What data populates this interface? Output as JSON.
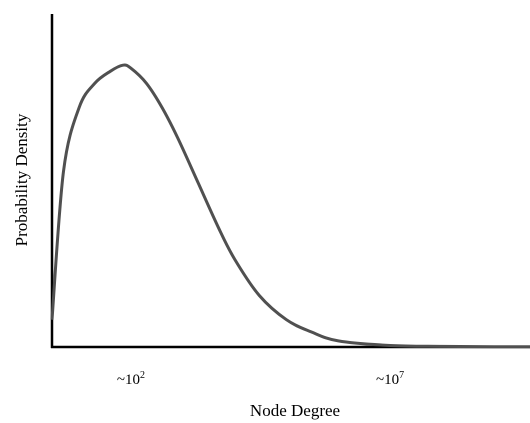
{
  "chart_data": {
    "type": "line",
    "title": "",
    "xlabel": "Node Degree",
    "ylabel": "Probability Density",
    "x_scale": "log",
    "xlim": [
      3,
      5000000000
    ],
    "ylim": [
      0,
      1
    ],
    "grid": false,
    "legend": "none",
    "tick_labels": {
      "x": [
        {
          "value": 100,
          "base": "~10",
          "exp": "2"
        },
        {
          "value": 10000000,
          "base": "~10",
          "exp": "7"
        }
      ],
      "y": []
    },
    "series": [
      {
        "color": "#505050",
        "x": [
          3,
          5,
          10,
          20,
          40,
          70,
          100,
          200,
          400,
          800,
          2000,
          5000,
          10000,
          30000,
          100000,
          300000,
          1000000,
          10000000,
          100000000,
          1000000000,
          5000000000
        ],
        "y": [
          0.09,
          0.58,
          0.79,
          0.87,
          0.91,
          0.93,
          0.92,
          0.87,
          0.79,
          0.69,
          0.54,
          0.39,
          0.29,
          0.17,
          0.09,
          0.05,
          0.02,
          0.005,
          0.002,
          0.001,
          0.001
        ]
      }
    ]
  }
}
